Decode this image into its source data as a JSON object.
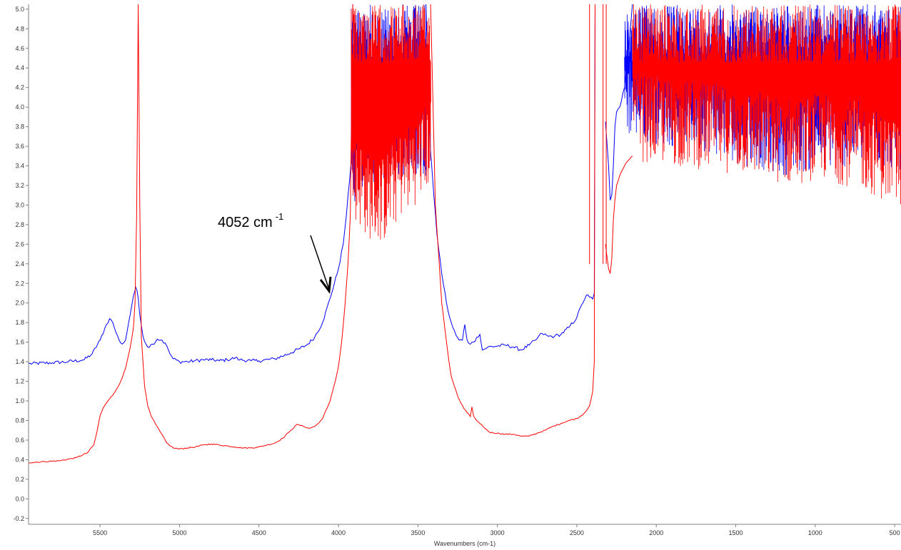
{
  "chart_data": {
    "type": "line",
    "xlabel": "Wavenumbers (cm-1)",
    "ylabel": "",
    "xlim": [
      5950,
      460
    ],
    "ylim": [
      -0.26,
      5.05
    ],
    "x_reversed": true,
    "grid": false,
    "legend": "none",
    "x_ticks": [
      5500,
      5000,
      4500,
      4000,
      3500,
      3000,
      2500,
      2000,
      1500,
      1000,
      500
    ],
    "y_ticks": [
      -0.2,
      0.0,
      0.2,
      0.4,
      0.6,
      0.8,
      1.0,
      1.2,
      1.4,
      1.6,
      1.8,
      2.0,
      2.2,
      2.4,
      2.6,
      2.8,
      3.0,
      3.2,
      3.4,
      3.6,
      3.8,
      4.0,
      4.2,
      4.4,
      4.6,
      4.8,
      5.0
    ],
    "annotation": {
      "text": "4052 cm",
      "superscript": "-1",
      "x": 4052,
      "y": 2.05
    },
    "series": [
      {
        "color": "#0000ff",
        "x": [
          5950,
          5800,
          5700,
          5600,
          5550,
          5500,
          5460,
          5440,
          5420,
          5400,
          5380,
          5360,
          5340,
          5320,
          5300,
          5285,
          5275,
          5268,
          5260,
          5250,
          5230,
          5200,
          5170,
          5140,
          5110,
          5080,
          5060,
          5040,
          5000,
          4950,
          4900,
          4850,
          4800,
          4750,
          4700,
          4650,
          4620,
          4550,
          4500,
          4400,
          4300,
          4250,
          4200,
          4150,
          4100,
          4052,
          4000,
          3970,
          3950,
          3930,
          3920,
          3910
        ],
        "y": [
          1.38,
          1.39,
          1.4,
          1.42,
          1.48,
          1.62,
          1.78,
          1.84,
          1.8,
          1.7,
          1.62,
          1.58,
          1.62,
          1.8,
          1.98,
          2.1,
          2.16,
          2.13,
          2.05,
          1.88,
          1.66,
          1.55,
          1.58,
          1.63,
          1.62,
          1.56,
          1.48,
          1.43,
          1.4,
          1.4,
          1.41,
          1.42,
          1.42,
          1.41,
          1.42,
          1.44,
          1.42,
          1.41,
          1.41,
          1.43,
          1.49,
          1.53,
          1.57,
          1.65,
          1.8,
          2.05,
          2.35,
          2.6,
          2.9,
          3.25,
          3.45,
          5.05
        ]
      },
      {
        "color": "#0000ff",
        "x": [
          3450,
          3420,
          3400,
          3380,
          3350,
          3320,
          3300,
          3280,
          3260,
          3240,
          3220,
          3205,
          3190,
          3170,
          3150,
          3130,
          3110,
          3095,
          3080,
          3060,
          3000,
          2950,
          2900,
          2850,
          2800,
          2760,
          2720,
          2680,
          2640,
          2600,
          2550,
          2500,
          2470,
          2440,
          2420,
          2400,
          2390,
          2385
        ],
        "y": [
          5.05,
          3.55,
          3.1,
          2.7,
          2.3,
          2.0,
          1.85,
          1.75,
          1.67,
          1.62,
          1.62,
          1.78,
          1.62,
          1.58,
          1.6,
          1.65,
          1.68,
          1.52,
          1.53,
          1.55,
          1.56,
          1.57,
          1.55,
          1.52,
          1.57,
          1.62,
          1.69,
          1.66,
          1.66,
          1.68,
          1.75,
          1.85,
          1.98,
          2.08,
          2.06,
          2.04,
          2.1,
          5.05
        ]
      },
      {
        "color": "#0000ff",
        "x": [
          2320,
          2300,
          2290,
          2280,
          2270,
          2260,
          2250,
          2230,
          2200,
          2180,
          2150
        ],
        "y": [
          3.85,
          3.4,
          3.05,
          3.1,
          3.4,
          3.8,
          3.95,
          4.0,
          4.2,
          4.5,
          5.05
        ]
      },
      {
        "color": "#ff0000",
        "x": [
          5950,
          5850,
          5750,
          5650,
          5580,
          5540,
          5520,
          5500,
          5480,
          5460,
          5440,
          5420,
          5400,
          5370,
          5340,
          5310,
          5290,
          5280,
          5270,
          5260,
          5250,
          5240,
          5220,
          5200,
          5180,
          5150,
          5120,
          5080,
          5040,
          5000,
          4950,
          4900,
          4850,
          4800,
          4750,
          4700,
          4650,
          4600,
          4550,
          4500,
          4450,
          4400,
          4350,
          4300,
          4260,
          4220,
          4180,
          4150,
          4120,
          4100,
          4080,
          4052,
          4020,
          4000,
          3980,
          3960,
          3940,
          3925,
          3910
        ],
        "y": [
          0.37,
          0.38,
          0.39,
          0.42,
          0.47,
          0.55,
          0.68,
          0.85,
          0.93,
          0.98,
          1.02,
          1.06,
          1.11,
          1.2,
          1.33,
          1.55,
          1.75,
          2.0,
          2.9,
          5.05,
          3.0,
          1.65,
          1.15,
          0.95,
          0.85,
          0.76,
          0.68,
          0.57,
          0.52,
          0.51,
          0.52,
          0.53,
          0.55,
          0.56,
          0.55,
          0.54,
          0.53,
          0.52,
          0.52,
          0.53,
          0.55,
          0.57,
          0.62,
          0.7,
          0.76,
          0.74,
          0.72,
          0.74,
          0.78,
          0.82,
          0.9,
          1.0,
          1.2,
          1.35,
          1.6,
          1.95,
          2.4,
          2.9,
          5.05
        ]
      },
      {
        "color": "#ff0000",
        "x": [
          3420,
          3390,
          3370,
          3350,
          3320,
          3300,
          3290,
          3270,
          3250,
          3230,
          3210,
          3190,
          3170,
          3160,
          3150,
          3130,
          3110,
          3090,
          3070,
          3050,
          3000,
          2950,
          2900,
          2870,
          2850,
          2800,
          2750,
          2700,
          2650,
          2600,
          2550,
          2500,
          2470,
          2440,
          2420,
          2400,
          2390,
          2385
        ],
        "y": [
          5.05,
          3.0,
          2.5,
          2.0,
          1.6,
          1.35,
          1.25,
          1.15,
          1.05,
          0.98,
          0.92,
          0.88,
          0.84,
          0.94,
          0.85,
          0.8,
          0.77,
          0.74,
          0.71,
          0.68,
          0.67,
          0.66,
          0.66,
          0.65,
          0.64,
          0.64,
          0.67,
          0.7,
          0.74,
          0.77,
          0.8,
          0.82,
          0.85,
          0.9,
          0.95,
          1.1,
          1.4,
          5.05
        ]
      },
      {
        "color": "#ff0000",
        "x": [
          2320,
          2300,
          2290,
          2280,
          2270,
          2260,
          2250,
          2230,
          2200,
          2180,
          2150
        ],
        "y": [
          2.6,
          2.35,
          2.3,
          2.45,
          2.85,
          3.05,
          3.2,
          3.3,
          3.4,
          3.45,
          3.5
        ]
      },
      {
        "color": "#0000ff",
        "style": "noise",
        "x": [
          3920,
          3450
        ],
        "lows": [
          2.95,
          3.25,
          3.2,
          3.3,
          3.25,
          3.3
        ],
        "ymax": 5.05
      },
      {
        "color": "#ff0000",
        "style": "noise",
        "x": [
          3920,
          3420
        ],
        "lows": [
          2.9,
          2.65,
          2.6,
          2.85,
          3.0,
          3.2
        ],
        "ymax": 5.05
      },
      {
        "color": "#0000ff",
        "style": "noise",
        "x": [
          2200,
          460
        ],
        "lows": [
          3.7,
          3.6,
          3.55,
          3.4,
          3.3,
          3.35,
          3.4,
          3.35
        ],
        "ymax": 5.05
      },
      {
        "color": "#ff0000",
        "style": "noise",
        "x": [
          2150,
          460
        ],
        "lows": [
          3.45,
          3.4,
          3.35,
          3.3,
          3.2,
          3.25,
          3.15,
          2.95
        ],
        "ymax": 5.05
      },
      {
        "color": "#ff0000",
        "style": "spike",
        "x": [
          2420,
          2335,
          2315
        ],
        "y": [
          5.05,
          5.05,
          5.05
        ]
      }
    ]
  }
}
